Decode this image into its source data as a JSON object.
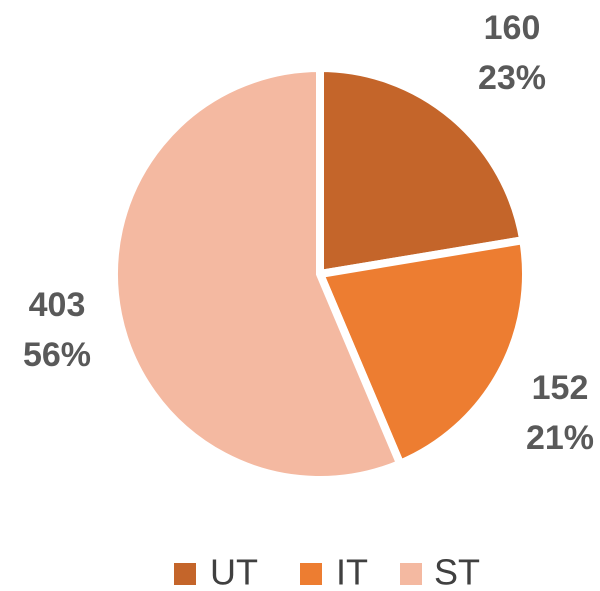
{
  "chart_data": {
    "type": "pie",
    "categories": [
      "UT",
      "IT",
      "ST"
    ],
    "values": [
      160,
      152,
      403
    ],
    "percent_labels": [
      "23%",
      "21%",
      "56%"
    ],
    "colors": [
      "#c4652a",
      "#ed7d31",
      "#f4b9a1"
    ],
    "legend": "bottom"
  }
}
